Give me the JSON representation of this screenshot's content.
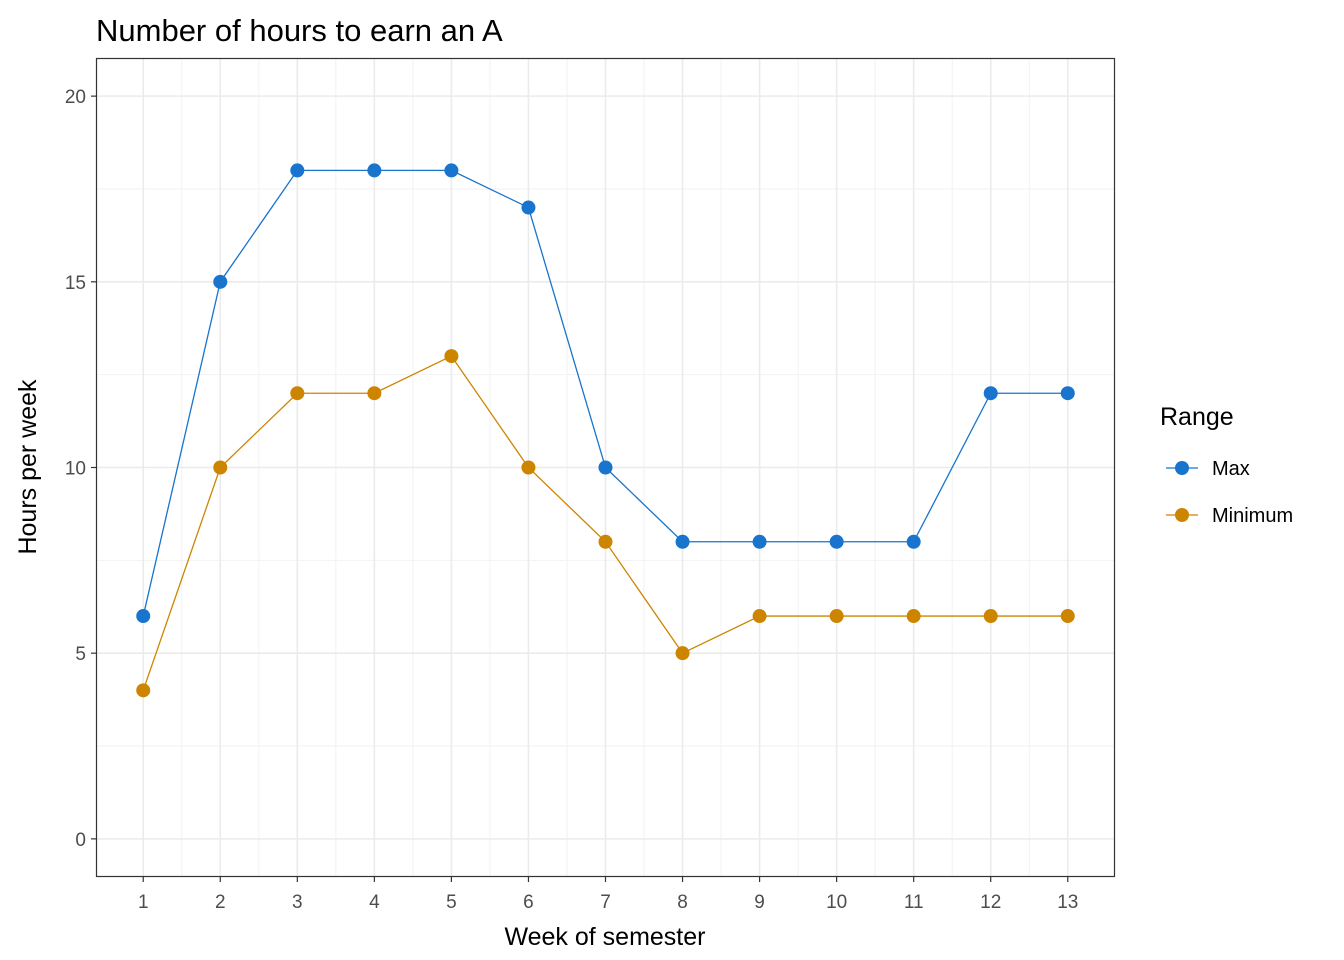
{
  "chart_data": {
    "type": "line",
    "title": "Number of hours to earn an A",
    "xlabel": "Week of semester",
    "ylabel": "Hours per week",
    "x": [
      1,
      2,
      3,
      4,
      5,
      6,
      7,
      8,
      9,
      10,
      11,
      12,
      13
    ],
    "xlim": [
      0.4,
      13.6
    ],
    "ylim": [
      -1,
      21
    ],
    "y_ticks": [
      0,
      5,
      10,
      15,
      20
    ],
    "grid": true,
    "legend": {
      "title": "Range",
      "position": "right"
    },
    "series": [
      {
        "name": "Max",
        "color": "#1874cd",
        "values": [
          6,
          15,
          18,
          18,
          18,
          17,
          10,
          8,
          8,
          8,
          8,
          12,
          12
        ]
      },
      {
        "name": "Minimum",
        "color": "#cd8500",
        "values": [
          4,
          10,
          12,
          12,
          13,
          10,
          8,
          5,
          6,
          6,
          6,
          6,
          6
        ]
      }
    ]
  }
}
